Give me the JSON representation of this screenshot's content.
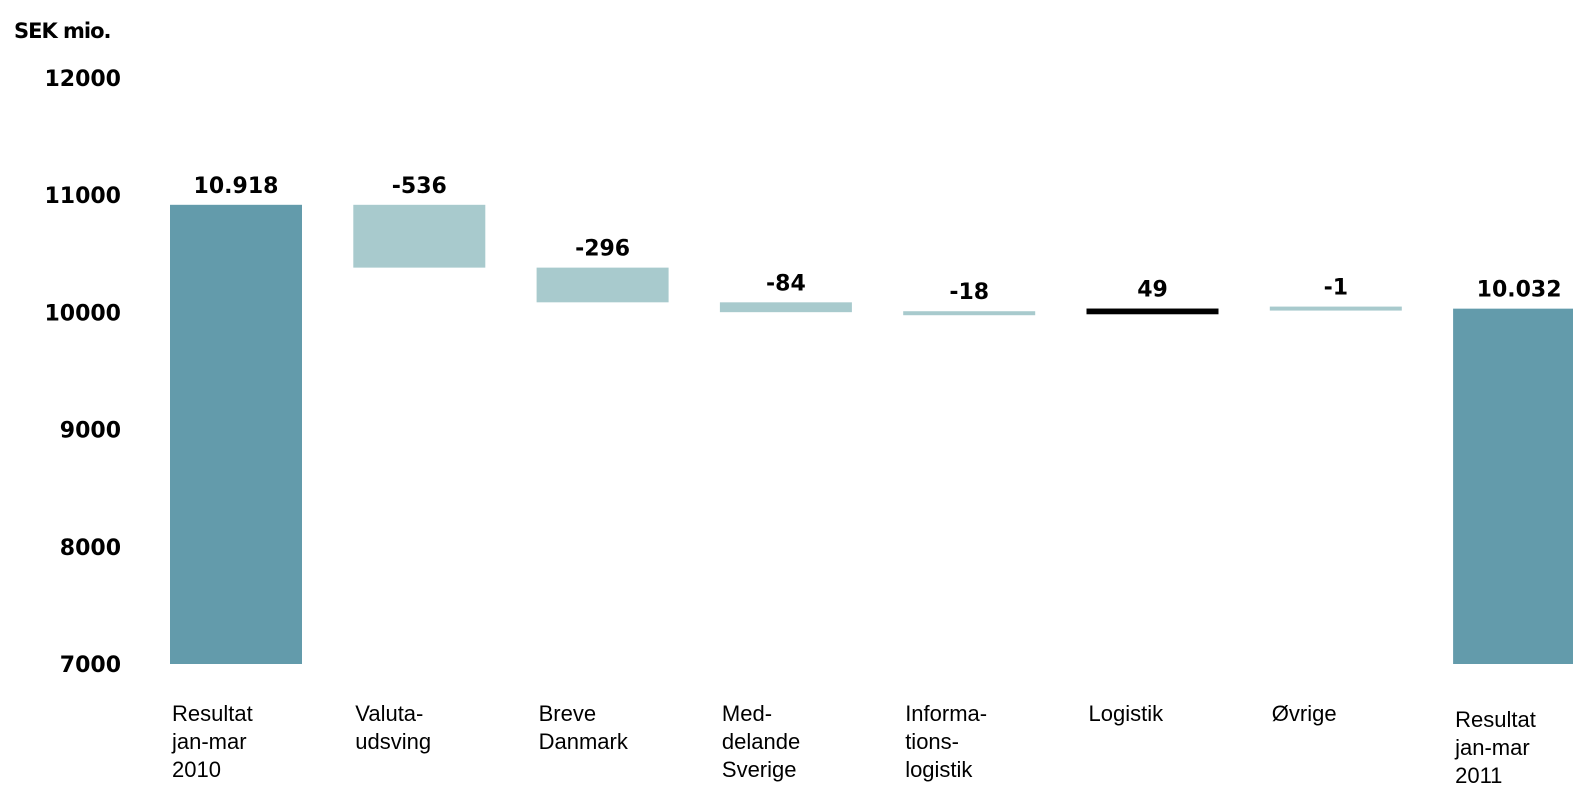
{
  "chart_data": {
    "type": "bar",
    "subtype": "waterfall",
    "unit_label": "SEK mio.",
    "ylim": [
      7000,
      12000
    ],
    "yticks": [
      "12000",
      "11000",
      "10000",
      "9000",
      "8000",
      "7000"
    ],
    "grid": false,
    "legend": "none",
    "categories": [
      [
        "Resultat",
        "jan-mar",
        "2010"
      ],
      [
        "Valuta-",
        "udsving"
      ],
      [
        "Breve",
        "Danmark"
      ],
      [
        "Med-",
        "delande",
        "Sverige"
      ],
      [
        "Informa-",
        "tions-",
        "logistik"
      ],
      [
        "Logistik"
      ],
      [
        "Øvrige"
      ],
      [
        "Resultat",
        "jan-mar",
        "2011"
      ]
    ],
    "values": [
      10918,
      -536,
      -296,
      -84,
      -18,
      49,
      -1,
      10032
    ],
    "kinds": [
      "total",
      "delta",
      "delta",
      "delta",
      "delta",
      "delta",
      "delta",
      "total"
    ],
    "data_labels": [
      "10.918",
      "-536",
      "-296",
      "-84",
      "-18",
      "49",
      "-1",
      "10.032"
    ],
    "colors": {
      "total": "#639bab",
      "decrease": "#a8cacd",
      "increase": "#000000"
    }
  }
}
